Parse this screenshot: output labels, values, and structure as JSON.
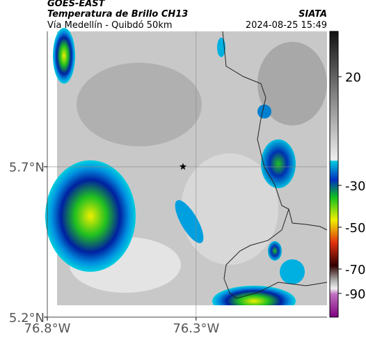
{
  "header": {
    "product": "GOES-EAST",
    "title": "Temperatura de Brillo CH13",
    "source": "SIATA",
    "subtitle": "Vía Medellín - Quibdó 50km",
    "timestamp": "2024-08-25 15:49"
  },
  "map": {
    "xlim": [
      -76.8,
      -75.86
    ],
    "ylim": [
      5.2,
      6.15
    ],
    "xticks": [
      {
        "value": -76.8,
        "label": "76.8°W"
      },
      {
        "value": -76.3,
        "label": "76.3°W"
      }
    ],
    "yticks": [
      {
        "value": 5.2,
        "label": "5.2°N"
      },
      {
        "value": 5.7,
        "label": "5.7°N"
      }
    ],
    "marker": {
      "lon": -76.344,
      "lat": 5.7
    }
  },
  "colorbar": {
    "ticks": [
      20,
      -30,
      -50,
      -70,
      -90
    ]
  }
}
